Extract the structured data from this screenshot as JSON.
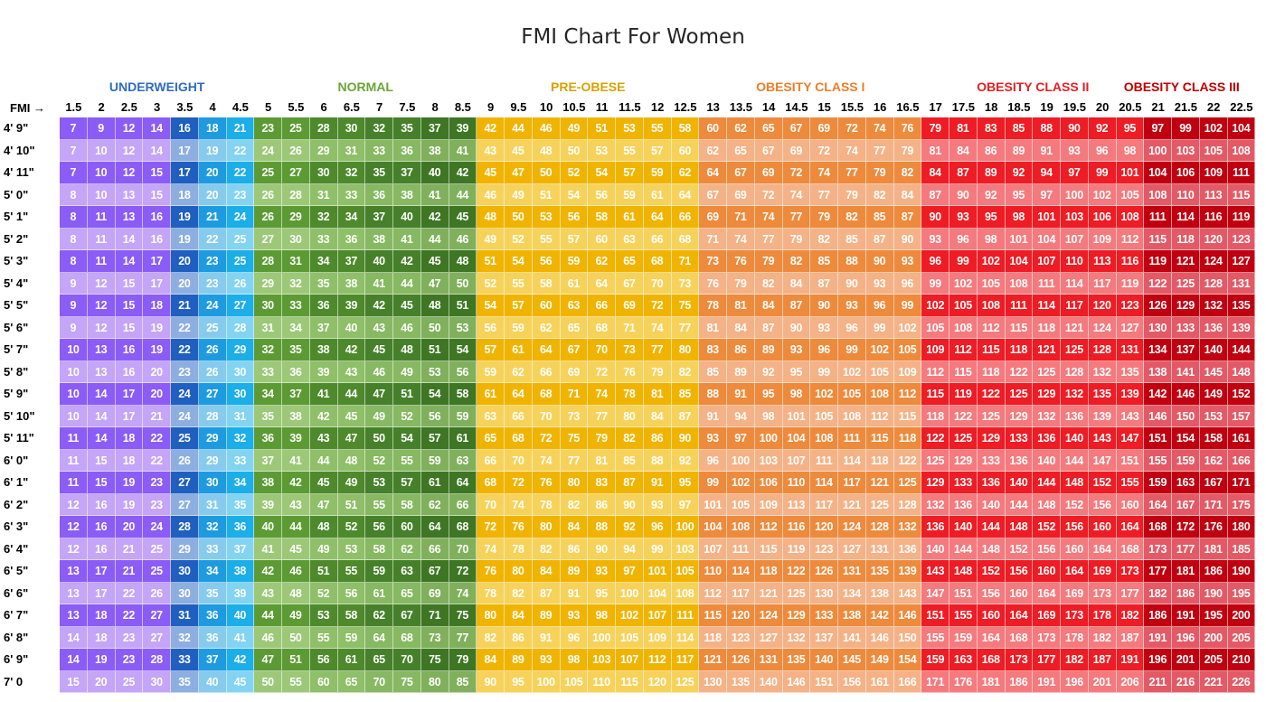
{
  "chart_data": {
    "type": "table",
    "title": "FMI Chart For Women",
    "corner_label": "FMI →",
    "categories": [
      {
        "name": "UNDERWEIGHT",
        "color": "#2F6CC0"
      },
      {
        "name": "NORMAL",
        "color": "#6AA535"
      },
      {
        "name": "PRE-OBESE",
        "color": "#D9A100"
      },
      {
        "name": "OBESITY CLASS I",
        "color": "#EE7D28"
      },
      {
        "name": "OBESITY CLASS II",
        "color": "#E81E23"
      },
      {
        "name": "OBESITY CLASS III",
        "color": "#C00000"
      }
    ],
    "fmi_values": [
      "1.5",
      "2",
      "2.5",
      "3",
      "3.5",
      "4",
      "4.5",
      "5",
      "5.5",
      "6",
      "6.5",
      "7",
      "7.5",
      "8",
      "8.5",
      "9",
      "9.5",
      "10",
      "10.5",
      "11",
      "11.5",
      "12",
      "12.5",
      "13",
      "13.5",
      "14",
      "14.5",
      "15",
      "15.5",
      "16",
      "16.5",
      "17",
      "17.5",
      "18",
      "18.5",
      "19",
      "19.5",
      "20",
      "20.5",
      "21",
      "21.5",
      "22",
      "22.5"
    ],
    "heights": [
      "4' 9\"",
      "4' 10\"",
      "4' 11\"",
      "5' 0\"",
      "5' 1\"",
      "5' 2\"",
      "5' 3\"",
      "5' 4\"",
      "5' 5\"",
      "5' 6\"",
      "5' 7\"",
      "5' 8\"",
      "5' 9\"",
      "5' 10\"",
      "5' 11\"",
      "6' 0\"",
      "6' 1\"",
      "6' 2\"",
      "6' 3\"",
      "6' 4\"",
      "6' 5\"",
      "6' 6\"",
      "6' 7\"",
      "6' 8\"",
      "6' 9\"",
      "7' 0"
    ],
    "rows": [
      [
        7,
        9,
        12,
        14,
        16,
        18,
        21,
        23,
        25,
        28,
        30,
        32,
        35,
        37,
        39,
        42,
        44,
        46,
        49,
        51,
        53,
        55,
        58,
        60,
        62,
        65,
        67,
        69,
        72,
        74,
        76,
        79,
        81,
        83,
        85,
        88,
        90,
        92,
        95,
        97,
        99,
        102,
        104
      ],
      [
        7,
        10,
        12,
        14,
        17,
        19,
        22,
        24,
        26,
        29,
        31,
        33,
        36,
        38,
        41,
        43,
        45,
        48,
        50,
        53,
        55,
        57,
        60,
        62,
        65,
        67,
        69,
        72,
        74,
        77,
        79,
        81,
        84,
        86,
        89,
        91,
        93,
        96,
        98,
        100,
        103,
        105,
        108
      ],
      [
        7,
        10,
        12,
        15,
        17,
        20,
        22,
        25,
        27,
        30,
        32,
        35,
        37,
        40,
        42,
        45,
        47,
        50,
        52,
        54,
        57,
        59,
        62,
        64,
        67,
        69,
        72,
        74,
        77,
        79,
        82,
        84,
        87,
        89,
        92,
        94,
        97,
        99,
        101,
        104,
        106,
        109,
        111
      ],
      [
        8,
        10,
        13,
        15,
        18,
        20,
        23,
        26,
        28,
        31,
        33,
        36,
        38,
        41,
        44,
        46,
        49,
        51,
        54,
        56,
        59,
        61,
        64,
        67,
        69,
        72,
        74,
        77,
        79,
        82,
        84,
        87,
        90,
        92,
        95,
        97,
        100,
        102,
        105,
        108,
        110,
        113,
        115
      ],
      [
        8,
        11,
        13,
        16,
        19,
        21,
        24,
        26,
        29,
        32,
        34,
        37,
        40,
        42,
        45,
        48,
        50,
        53,
        56,
        58,
        61,
        64,
        66,
        69,
        71,
        74,
        77,
        79,
        82,
        85,
        87,
        90,
        93,
        95,
        98,
        101,
        103,
        106,
        108,
        111,
        114,
        116,
        119
      ],
      [
        8,
        11,
        14,
        16,
        19,
        22,
        25,
        27,
        30,
        33,
        36,
        38,
        41,
        44,
        46,
        49,
        52,
        55,
        57,
        60,
        63,
        66,
        68,
        71,
        74,
        77,
        79,
        82,
        85,
        87,
        90,
        93,
        96,
        98,
        101,
        104,
        107,
        109,
        112,
        115,
        118,
        120,
        123
      ],
      [
        8,
        11,
        14,
        17,
        20,
        23,
        25,
        28,
        31,
        34,
        37,
        40,
        42,
        45,
        48,
        51,
        54,
        56,
        59,
        62,
        65,
        68,
        71,
        73,
        76,
        79,
        82,
        85,
        88,
        90,
        93,
        96,
        99,
        102,
        104,
        107,
        110,
        113,
        116,
        119,
        121,
        124,
        127
      ],
      [
        9,
        12,
        15,
        17,
        20,
        23,
        26,
        29,
        32,
        35,
        38,
        41,
        44,
        47,
        50,
        52,
        55,
        58,
        61,
        64,
        67,
        70,
        73,
        76,
        79,
        82,
        84,
        87,
        90,
        93,
        96,
        99,
        102,
        105,
        108,
        111,
        114,
        117,
        119,
        122,
        125,
        128,
        131
      ],
      [
        9,
        12,
        15,
        18,
        21,
        24,
        27,
        30,
        33,
        36,
        39,
        42,
        45,
        48,
        51,
        54,
        57,
        60,
        63,
        66,
        69,
        72,
        75,
        78,
        81,
        84,
        87,
        90,
        93,
        96,
        99,
        102,
        105,
        108,
        111,
        114,
        117,
        120,
        123,
        126,
        129,
        132,
        135
      ],
      [
        9,
        12,
        15,
        19,
        22,
        25,
        28,
        31,
        34,
        37,
        40,
        43,
        46,
        50,
        53,
        56,
        59,
        62,
        65,
        68,
        71,
        74,
        77,
        81,
        84,
        87,
        90,
        93,
        96,
        99,
        102,
        105,
        108,
        112,
        115,
        118,
        121,
        124,
        127,
        130,
        133,
        136,
        139
      ],
      [
        10,
        13,
        16,
        19,
        22,
        26,
        29,
        32,
        35,
        38,
        42,
        45,
        48,
        51,
        54,
        57,
        61,
        64,
        67,
        70,
        73,
        77,
        80,
        83,
        86,
        89,
        93,
        96,
        99,
        102,
        105,
        109,
        112,
        115,
        118,
        121,
        125,
        128,
        131,
        134,
        137,
        140,
        144
      ],
      [
        10,
        13,
        16,
        20,
        23,
        26,
        30,
        33,
        36,
        39,
        43,
        46,
        49,
        53,
        56,
        59,
        62,
        66,
        69,
        72,
        76,
        79,
        82,
        85,
        89,
        92,
        95,
        99,
        102,
        105,
        109,
        112,
        115,
        118,
        122,
        125,
        128,
        132,
        135,
        138,
        141,
        145,
        148
      ],
      [
        10,
        14,
        17,
        20,
        24,
        27,
        30,
        34,
        37,
        41,
        44,
        47,
        51,
        54,
        58,
        61,
        64,
        68,
        71,
        74,
        78,
        81,
        85,
        88,
        91,
        95,
        98,
        102,
        105,
        108,
        112,
        115,
        119,
        122,
        125,
        129,
        132,
        135,
        139,
        142,
        146,
        149,
        152
      ],
      [
        10,
        14,
        17,
        21,
        24,
        28,
        31,
        35,
        38,
        42,
        45,
        49,
        52,
        56,
        59,
        63,
        66,
        70,
        73,
        77,
        80,
        84,
        87,
        91,
        94,
        98,
        101,
        105,
        108,
        112,
        115,
        118,
        122,
        125,
        129,
        132,
        136,
        139,
        143,
        146,
        150,
        153,
        157
      ],
      [
        11,
        14,
        18,
        22,
        25,
        29,
        32,
        36,
        39,
        43,
        47,
        50,
        54,
        57,
        61,
        65,
        68,
        72,
        75,
        79,
        82,
        86,
        90,
        93,
        97,
        100,
        104,
        108,
        111,
        115,
        118,
        122,
        125,
        129,
        133,
        136,
        140,
        143,
        147,
        151,
        154,
        158,
        161
      ],
      [
        11,
        15,
        18,
        22,
        26,
        29,
        33,
        37,
        41,
        44,
        48,
        52,
        55,
        59,
        63,
        66,
        70,
        74,
        77,
        81,
        85,
        88,
        92,
        96,
        100,
        103,
        107,
        111,
        114,
        118,
        122,
        125,
        129,
        133,
        136,
        140,
        144,
        147,
        151,
        155,
        159,
        162,
        166
      ],
      [
        11,
        15,
        19,
        23,
        27,
        30,
        34,
        38,
        42,
        45,
        49,
        53,
        57,
        61,
        64,
        68,
        72,
        76,
        80,
        83,
        87,
        91,
        95,
        99,
        102,
        106,
        110,
        114,
        117,
        121,
        125,
        129,
        133,
        136,
        140,
        144,
        148,
        152,
        155,
        159,
        163,
        167,
        171
      ],
      [
        12,
        16,
        19,
        23,
        27,
        31,
        35,
        39,
        43,
        47,
        51,
        55,
        58,
        62,
        66,
        70,
        74,
        78,
        82,
        86,
        90,
        93,
        97,
        101,
        105,
        109,
        113,
        117,
        121,
        125,
        128,
        132,
        136,
        140,
        144,
        148,
        152,
        156,
        160,
        164,
        167,
        171,
        175
      ],
      [
        12,
        16,
        20,
        24,
        28,
        32,
        36,
        40,
        44,
        48,
        52,
        56,
        60,
        64,
        68,
        72,
        76,
        80,
        84,
        88,
        92,
        96,
        100,
        104,
        108,
        112,
        116,
        120,
        124,
        128,
        132,
        136,
        140,
        144,
        148,
        152,
        156,
        160,
        164,
        168,
        172,
        176,
        180
      ],
      [
        12,
        16,
        21,
        25,
        29,
        33,
        37,
        41,
        45,
        49,
        53,
        58,
        62,
        66,
        70,
        74,
        78,
        82,
        86,
        90,
        94,
        99,
        103,
        107,
        111,
        115,
        119,
        123,
        127,
        131,
        136,
        140,
        144,
        148,
        152,
        156,
        160,
        164,
        168,
        173,
        177,
        181,
        185
      ],
      [
        13,
        17,
        21,
        25,
        30,
        34,
        38,
        42,
        46,
        51,
        55,
        59,
        63,
        67,
        72,
        76,
        80,
        84,
        89,
        93,
        97,
        101,
        105,
        110,
        114,
        118,
        122,
        126,
        131,
        135,
        139,
        143,
        148,
        152,
        156,
        160,
        164,
        169,
        173,
        177,
        181,
        186,
        190
      ],
      [
        13,
        17,
        22,
        26,
        30,
        35,
        39,
        43,
        48,
        52,
        56,
        61,
        65,
        69,
        74,
        78,
        82,
        87,
        91,
        95,
        100,
        104,
        108,
        112,
        117,
        121,
        125,
        130,
        134,
        138,
        143,
        147,
        151,
        156,
        160,
        164,
        169,
        173,
        177,
        182,
        186,
        190,
        195
      ],
      [
        13,
        18,
        22,
        27,
        31,
        36,
        40,
        44,
        49,
        53,
        58,
        62,
        67,
        71,
        75,
        80,
        84,
        89,
        93,
        98,
        102,
        107,
        111,
        115,
        120,
        124,
        129,
        133,
        138,
        142,
        146,
        151,
        155,
        160,
        164,
        169,
        173,
        178,
        182,
        186,
        191,
        195,
        200
      ],
      [
        14,
        18,
        23,
        27,
        32,
        36,
        41,
        46,
        50,
        55,
        59,
        64,
        68,
        73,
        77,
        82,
        86,
        91,
        96,
        100,
        105,
        109,
        114,
        118,
        123,
        127,
        132,
        137,
        141,
        146,
        150,
        155,
        159,
        164,
        168,
        173,
        178,
        182,
        187,
        191,
        196,
        200,
        205
      ],
      [
        14,
        19,
        23,
        28,
        33,
        37,
        42,
        47,
        51,
        56,
        61,
        65,
        70,
        75,
        79,
        84,
        89,
        93,
        98,
        103,
        107,
        112,
        117,
        121,
        126,
        131,
        135,
        140,
        145,
        149,
        154,
        159,
        163,
        168,
        173,
        177,
        182,
        187,
        191,
        196,
        201,
        205,
        210
      ],
      [
        15,
        20,
        25,
        30,
        35,
        40,
        45,
        50,
        55,
        60,
        65,
        70,
        75,
        80,
        85,
        90,
        95,
        100,
        105,
        110,
        115,
        120,
        125,
        130,
        135,
        140,
        146,
        151,
        156,
        161,
        166,
        171,
        176,
        181,
        186,
        191,
        196,
        201,
        206,
        211,
        216,
        221,
        226
      ]
    ]
  }
}
